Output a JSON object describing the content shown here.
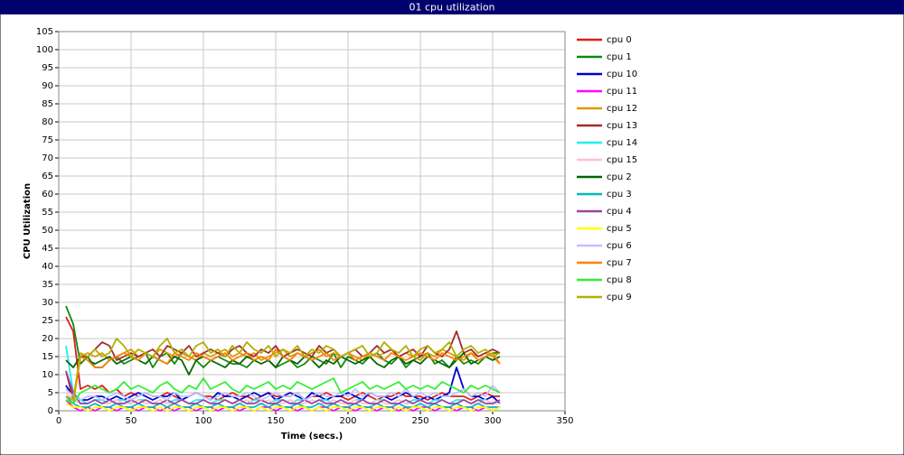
{
  "chart_data": {
    "type": "line",
    "title": "01 cpu utilization",
    "x_label": "Time (secs.)",
    "y_label": "CPU Utilization",
    "xlim": [
      0,
      350
    ],
    "xticks": [
      0,
      50,
      100,
      150,
      200,
      250,
      300,
      350
    ],
    "ylim": [
      0,
      105
    ],
    "yticks": [
      0,
      5,
      10,
      15,
      20,
      25,
      30,
      35,
      40,
      45,
      50,
      55,
      60,
      65,
      70,
      75,
      80,
      85,
      90,
      95,
      100,
      105
    ],
    "grid": true,
    "legend": "right",
    "x": [
      5,
      10,
      15,
      20,
      25,
      30,
      35,
      40,
      45,
      50,
      55,
      60,
      65,
      70,
      75,
      80,
      85,
      90,
      95,
      100,
      105,
      110,
      115,
      120,
      125,
      130,
      135,
      140,
      145,
      150,
      155,
      160,
      165,
      170,
      175,
      180,
      185,
      190,
      195,
      200,
      205,
      210,
      215,
      220,
      225,
      230,
      235,
      240,
      245,
      250,
      255,
      260,
      265,
      270,
      275,
      280,
      285,
      290,
      295,
      300,
      305
    ],
    "series": [
      {
        "name": "cpu 0",
        "color": "#dd1c1c",
        "values": [
          26,
          22,
          6,
          7,
          6,
          7,
          5,
          6,
          4,
          5,
          4,
          5,
          4,
          4,
          5,
          4,
          3,
          4,
          5,
          4,
          4,
          3,
          4,
          5,
          4,
          4,
          3,
          4,
          5,
          4,
          4,
          4,
          5,
          3,
          4,
          4,
          5,
          4,
          4,
          3,
          4,
          5,
          4,
          3,
          4,
          4,
          5,
          4,
          4,
          4,
          3,
          4,
          5,
          4,
          4,
          4,
          3,
          4,
          5,
          4,
          4
        ]
      },
      {
        "name": "cpu 1",
        "color": "#118811",
        "values": [
          29,
          24,
          13,
          15,
          12,
          12,
          14,
          15,
          13,
          14,
          15,
          16,
          12,
          15,
          16,
          13,
          16,
          15,
          14,
          12,
          14,
          15,
          14,
          13,
          13,
          12,
          14,
          15,
          14,
          12,
          13,
          14,
          12,
          13,
          15,
          14,
          13,
          16,
          12,
          15,
          14,
          13,
          15,
          16,
          14,
          13,
          15,
          12,
          14,
          15,
          16,
          13,
          14,
          12,
          15,
          13,
          14,
          13,
          15,
          16,
          16
        ]
      },
      {
        "name": "cpu 10",
        "color": "#0000cc",
        "values": [
          7,
          4,
          3,
          3,
          4,
          4,
          3,
          4,
          3,
          4,
          5,
          4,
          3,
          4,
          4,
          5,
          3,
          4,
          5,
          4,
          3,
          5,
          4,
          4,
          3,
          4,
          5,
          4,
          5,
          3,
          4,
          5,
          4,
          3,
          5,
          4,
          3,
          4,
          4,
          5,
          4,
          3,
          5,
          4,
          4,
          3,
          4,
          5,
          4,
          3,
          4,
          3,
          4,
          5,
          12,
          6,
          4,
          4,
          3,
          4,
          2
        ]
      },
      {
        "name": "cpu 11",
        "color": "#ff00ff",
        "values": [
          3,
          1,
          0,
          1,
          0,
          1,
          1,
          0,
          1,
          1,
          0,
          1,
          1,
          0,
          1,
          0,
          1,
          1,
          0,
          1,
          1,
          0,
          1,
          1,
          0,
          1,
          0,
          1,
          1,
          0,
          1,
          1,
          0,
          1,
          0,
          1,
          1,
          0,
          1,
          1,
          0,
          1,
          1,
          0,
          1,
          1,
          0,
          1,
          0,
          1,
          1,
          0,
          1,
          1,
          0,
          1,
          1,
          0,
          1,
          0,
          1
        ]
      },
      {
        "name": "cpu 12",
        "color": "#dd9900",
        "values": [
          4,
          3,
          15,
          16,
          15,
          16,
          14,
          15,
          16,
          17,
          15,
          16,
          15,
          17,
          16,
          15,
          16,
          15,
          14,
          16,
          15,
          16,
          17,
          15,
          16,
          15,
          16,
          14,
          15,
          16,
          17,
          15,
          16,
          15,
          16,
          17,
          15,
          16,
          15,
          16,
          15,
          14,
          16,
          15,
          16,
          17,
          15,
          16,
          15,
          14,
          16,
          15,
          17,
          16,
          15,
          14,
          16,
          15,
          16,
          15,
          13
        ]
      },
      {
        "name": "cpu 13",
        "color": "#a52a2a",
        "values": [
          11,
          3,
          15,
          15,
          17,
          19,
          18,
          14,
          15,
          16,
          15,
          16,
          17,
          15,
          18,
          17,
          16,
          18,
          15,
          16,
          17,
          16,
          15,
          17,
          18,
          16,
          15,
          17,
          16,
          18,
          15,
          16,
          17,
          16,
          15,
          18,
          16,
          17,
          15,
          16,
          17,
          15,
          16,
          18,
          16,
          17,
          15,
          16,
          17,
          15,
          18,
          16,
          15,
          17,
          22,
          16,
          17,
          15,
          16,
          17,
          16
        ]
      },
      {
        "name": "cpu 14",
        "color": "#22eeee",
        "values": [
          18,
          5,
          3,
          2,
          3,
          3,
          2,
          3,
          3,
          2,
          3,
          3,
          2,
          3,
          2,
          3,
          3,
          2,
          3,
          3,
          2,
          3,
          3,
          2,
          3,
          2,
          3,
          3,
          2,
          3,
          3,
          2,
          3,
          3,
          2,
          3,
          3,
          2,
          3,
          2,
          3,
          3,
          2,
          3,
          3,
          2,
          3,
          2,
          3,
          3,
          2,
          3,
          3,
          2,
          3,
          3,
          2,
          3,
          3,
          2,
          3
        ]
      },
      {
        "name": "cpu 15",
        "color": "#ffc0cb",
        "values": [
          5,
          3,
          2,
          2,
          3,
          2,
          2,
          3,
          2,
          2,
          3,
          2,
          2,
          3,
          2,
          2,
          3,
          2,
          2,
          3,
          2,
          2,
          3,
          2,
          2,
          3,
          2,
          2,
          3,
          2,
          2,
          3,
          2,
          2,
          3,
          2,
          2,
          3,
          2,
          2,
          3,
          2,
          2,
          3,
          2,
          2,
          3,
          2,
          2,
          3,
          2,
          2,
          3,
          2,
          2,
          3,
          2,
          2,
          3,
          2,
          2
        ]
      },
      {
        "name": "cpu 2",
        "color": "#006600",
        "values": [
          14,
          12,
          15,
          14,
          13,
          14,
          15,
          13,
          14,
          15,
          14,
          13,
          15,
          14,
          13,
          15,
          14,
          10,
          14,
          15,
          14,
          13,
          12,
          14,
          13,
          15,
          14,
          13,
          14,
          12,
          15,
          14,
          13,
          15,
          14,
          12,
          14,
          13,
          15,
          14,
          13,
          14,
          15,
          13,
          12,
          14,
          15,
          13,
          14,
          13,
          15,
          14,
          13,
          12,
          14,
          16,
          13,
          14,
          15,
          14,
          15
        ]
      },
      {
        "name": "cpu 3",
        "color": "#00bbbb",
        "values": [
          4,
          2,
          1,
          1,
          2,
          1,
          1,
          2,
          1,
          1,
          2,
          1,
          1,
          2,
          1,
          2,
          1,
          1,
          2,
          1,
          1,
          2,
          1,
          1,
          2,
          1,
          1,
          2,
          1,
          2,
          1,
          1,
          2,
          1,
          1,
          2,
          1,
          2,
          1,
          1,
          2,
          1,
          1,
          2,
          1,
          1,
          2,
          1,
          1,
          2,
          1,
          2,
          1,
          1,
          2,
          1,
          1,
          2,
          1,
          1,
          1
        ]
      },
      {
        "name": "cpu 4",
        "color": "#a040a0",
        "values": [
          11,
          5,
          2,
          2,
          3,
          2,
          3,
          2,
          2,
          3,
          2,
          3,
          2,
          2,
          3,
          2,
          3,
          2,
          2,
          3,
          2,
          2,
          3,
          2,
          3,
          2,
          2,
          3,
          2,
          2,
          3,
          2,
          2,
          3,
          2,
          3,
          2,
          2,
          3,
          2,
          2,
          3,
          2,
          2,
          3,
          2,
          2,
          3,
          2,
          3,
          2,
          2,
          3,
          2,
          2,
          3,
          2,
          3,
          2,
          2,
          3
        ]
      },
      {
        "name": "cpu 5",
        "color": "#ffff00",
        "values": [
          2,
          1,
          1,
          0,
          1,
          1,
          0,
          1,
          1,
          0,
          1,
          1,
          0,
          1,
          0,
          1,
          1,
          0,
          1,
          1,
          0,
          1,
          1,
          0,
          1,
          1,
          0,
          1,
          0,
          1,
          1,
          0,
          1,
          1,
          0,
          1,
          0,
          1,
          1,
          0,
          1,
          1,
          0,
          1,
          1,
          0,
          1,
          0,
          1,
          1,
          0,
          1,
          1,
          0,
          1,
          1,
          0,
          1,
          1,
          0,
          1
        ]
      },
      {
        "name": "cpu 6",
        "color": "#c0c0ff",
        "values": [
          6,
          4,
          3,
          4,
          4,
          3,
          4,
          5,
          4,
          3,
          4,
          5,
          4,
          4,
          3,
          5,
          4,
          4,
          5,
          4,
          3,
          4,
          5,
          4,
          4,
          5,
          4,
          3,
          4,
          5,
          4,
          4,
          5,
          3,
          4,
          5,
          4,
          4,
          5,
          4,
          6,
          4,
          5,
          4,
          4,
          5,
          4,
          6,
          4,
          5,
          4,
          5,
          4,
          4,
          5,
          6,
          4,
          5,
          4,
          7,
          5
        ]
      },
      {
        "name": "cpu 7",
        "color": "#ff8000",
        "values": [
          3,
          2,
          15,
          14,
          12,
          12,
          14,
          15,
          16,
          15,
          14,
          16,
          15,
          14,
          13,
          16,
          15,
          14,
          16,
          15,
          14,
          15,
          16,
          14,
          15,
          16,
          14,
          15,
          14,
          17,
          15,
          14,
          16,
          15,
          14,
          15,
          16,
          14,
          15,
          16,
          14,
          15,
          16,
          15,
          14,
          16,
          15,
          14,
          15,
          16,
          15,
          14,
          16,
          15,
          14,
          15,
          16,
          14,
          15,
          16,
          13
        ]
      },
      {
        "name": "cpu 8",
        "color": "#33ee33",
        "values": [
          3,
          2,
          5,
          6,
          7,
          6,
          5,
          6,
          8,
          6,
          7,
          6,
          5,
          7,
          8,
          6,
          5,
          7,
          6,
          9,
          6,
          7,
          8,
          6,
          5,
          7,
          6,
          7,
          8,
          6,
          7,
          6,
          8,
          7,
          6,
          7,
          8,
          9,
          5,
          6,
          7,
          8,
          6,
          7,
          6,
          7,
          8,
          6,
          7,
          6,
          7,
          6,
          8,
          7,
          6,
          5,
          7,
          6,
          7,
          6,
          5
        ]
      },
      {
        "name": "cpu 9",
        "color": "#b0b000",
        "values": [
          4,
          3,
          16,
          15,
          17,
          15,
          16,
          20,
          18,
          15,
          17,
          16,
          15,
          18,
          20,
          16,
          17,
          15,
          18,
          19,
          16,
          17,
          15,
          18,
          16,
          19,
          17,
          16,
          18,
          15,
          17,
          16,
          18,
          15,
          17,
          16,
          18,
          17,
          15,
          16,
          17,
          18,
          15,
          16,
          19,
          17,
          16,
          18,
          15,
          17,
          18,
          16,
          17,
          19,
          15,
          17,
          18,
          16,
          17,
          15,
          16
        ]
      }
    ]
  }
}
